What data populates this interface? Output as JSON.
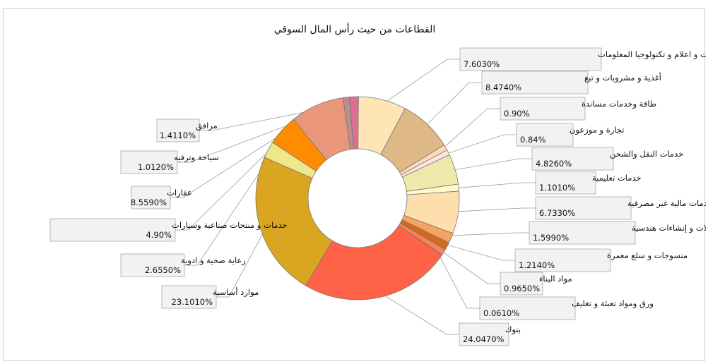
{
  "chart_data": {
    "type": "pie",
    "variant": "donut",
    "title": "القطاعات من حيث رأس المال السوقي",
    "legend": "none",
    "slices": [
      {
        "label": "اتصالات و  اعلام و تكنولوجيا المعلومات",
        "value_text": "7.6030%",
        "value": 7.603,
        "color": "#FFE4B5"
      },
      {
        "label": "أغذية و مشروبات و تبغ",
        "value_text": "8.4740%",
        "value": 8.474,
        "color": "#DEB887"
      },
      {
        "label": "طاقة وخدمات مساندة",
        "value_text": "0.90%",
        "value": 0.9,
        "color": "#FFDAB9"
      },
      {
        "label": "تجارة و موزعون",
        "value_text": "0.84%",
        "value": 0.84,
        "color": "#FFE4E1"
      },
      {
        "label": "خدمات النقل والشحن",
        "value_text": "4.8260%",
        "value": 4.826,
        "color": "#EEE8AA"
      },
      {
        "label": "خدمات تعليمية",
        "value_text": "1.1010%",
        "value": 1.101,
        "color": "#FFFACD"
      },
      {
        "label": "خدمات مالية غير مصرفية",
        "value_text": "6.7330%",
        "value": 6.733,
        "color": "#FFDEAD"
      },
      {
        "label": "مقاولات و إنشاءات هندسية",
        "value_text": "1.5990%",
        "value": 1.599,
        "color": "#F4A460"
      },
      {
        "label": "منسوجات و سلع معمرة",
        "value_text": "1.2140%",
        "value": 1.214,
        "color": "#D2691E"
      },
      {
        "label": "مواد البناء",
        "value_text": "0.9650%",
        "value": 0.965,
        "color": "#FF7F50"
      },
      {
        "label": "ورق ومواد تعبئة و تغليف",
        "value_text": "0.0610%",
        "value": 0.061,
        "color": "#CD853F"
      },
      {
        "label": "بنوك",
        "value_text": "24.0470%",
        "value": 24.047,
        "color": "#FF6347"
      },
      {
        "label": "موارد أساسية",
        "value_text": "23.1010%",
        "value": 23.101,
        "color": "#DAA520"
      },
      {
        "label": "رعاية صحية و ادوية",
        "value_text": "2.6550%",
        "value": 2.655,
        "color": "#F0E68C"
      },
      {
        "label": "خدمات و منتجات صناعية وسيارات",
        "value_text": "4.90%",
        "value": 4.9,
        "color": "#FF8C00"
      },
      {
        "label": "عقارات",
        "value_text": "8.5590%",
        "value": 8.559,
        "color": "#E9967A"
      },
      {
        "label": "سياحة وترفيه",
        "value_text": "1.0120%",
        "value": 1.012,
        "color": "#BC8F8F"
      },
      {
        "label": "مرافق",
        "value_text": "1.4110%",
        "value": 1.411,
        "color": "#DB7093"
      }
    ]
  }
}
